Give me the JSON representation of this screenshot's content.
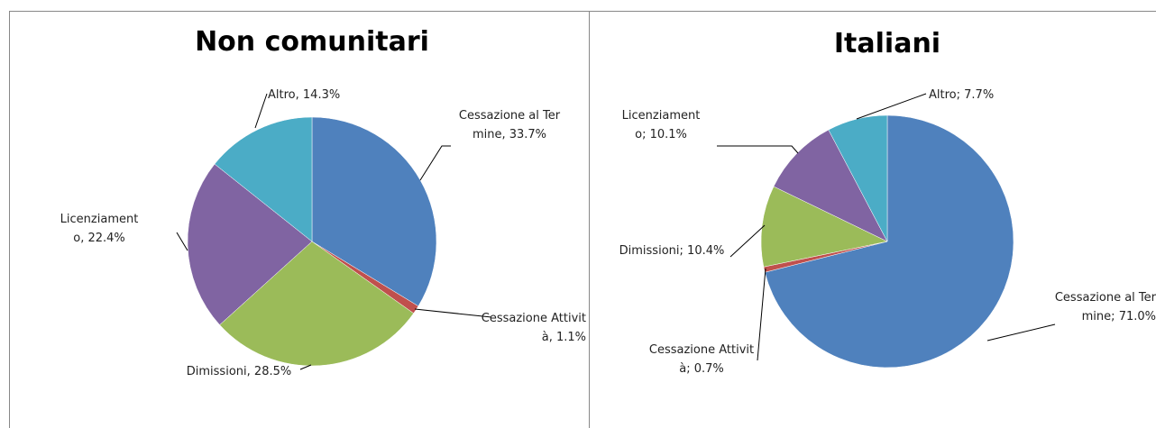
{
  "chart_data": [
    {
      "type": "pie",
      "title": "Non comunitari",
      "label_separator": ",",
      "categories": [
        "Cessazione al Termine",
        "Cessazione Attività",
        "Dimissioni",
        "Licenziamento",
        "Altro"
      ],
      "values": [
        33.7,
        1.1,
        28.5,
        22.4,
        14.3
      ],
      "value_labels": [
        "33.7%",
        "1.1%",
        "28.5%",
        "22.4%",
        "14.3%"
      ],
      "colors": [
        "#4f81bd",
        "#c0504d",
        "#9bbb59",
        "#8064a2",
        "#4bacc6"
      ]
    },
    {
      "type": "pie",
      "title": "Italiani",
      "label_separator": ";",
      "categories": [
        "Cessazione al Termine",
        "Cessazione Attività",
        "Dimissioni",
        "Licenziamento",
        "Altro"
      ],
      "values": [
        71.0,
        0.7,
        10.4,
        10.1,
        7.7
      ],
      "value_labels": [
        "71.0%",
        "0.7%",
        "10.4%",
        "10.1%",
        "7.7%"
      ],
      "colors": [
        "#4f81bd",
        "#c0504d",
        "#9bbb59",
        "#8064a2",
        "#4bacc6"
      ]
    }
  ]
}
